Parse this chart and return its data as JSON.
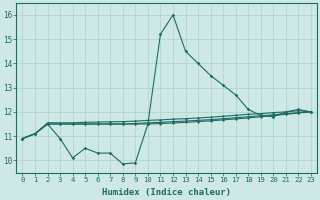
{
  "x_ticks": [
    0,
    1,
    2,
    3,
    4,
    5,
    6,
    7,
    8,
    9,
    10,
    11,
    12,
    13,
    14,
    15,
    16,
    17,
    18,
    19,
    20,
    21,
    22,
    23
  ],
  "xlabel": "Humidex (Indice chaleur)",
  "ylim": [
    9.5,
    16.5
  ],
  "xlim": [
    -0.5,
    23.5
  ],
  "yticks": [
    10,
    11,
    12,
    13,
    14,
    15,
    16
  ],
  "bg_color": "#cde8e5",
  "line_color": "#1e6b65",
  "grid_color": "#add0cc",
  "line1": [
    10.9,
    11.1,
    11.5,
    10.9,
    10.1,
    10.5,
    10.3,
    10.3,
    9.85,
    9.9,
    11.5,
    15.2,
    16.0,
    14.5,
    14.0,
    13.5,
    13.1,
    12.7,
    12.1,
    11.85,
    11.8,
    12.0,
    12.1,
    12.0
  ],
  "line2": [
    10.9,
    11.1,
    11.55,
    11.55,
    11.55,
    11.57,
    11.58,
    11.59,
    11.6,
    11.62,
    11.65,
    11.67,
    11.7,
    11.72,
    11.75,
    11.78,
    11.82,
    11.86,
    11.9,
    11.93,
    11.97,
    12.0,
    12.05,
    12.0
  ],
  "line3": [
    10.9,
    11.1,
    11.5,
    11.5,
    11.5,
    11.5,
    11.5,
    11.5,
    11.5,
    11.52,
    11.55,
    11.57,
    11.6,
    11.62,
    11.65,
    11.68,
    11.72,
    11.76,
    11.8,
    11.84,
    11.88,
    11.93,
    11.97,
    12.0
  ],
  "line4": [
    10.9,
    11.1,
    11.5,
    11.5,
    11.5,
    11.5,
    11.5,
    11.5,
    11.5,
    11.5,
    11.5,
    11.52,
    11.54,
    11.57,
    11.6,
    11.63,
    11.67,
    11.71,
    11.75,
    11.8,
    11.85,
    11.9,
    11.95,
    12.0
  ]
}
